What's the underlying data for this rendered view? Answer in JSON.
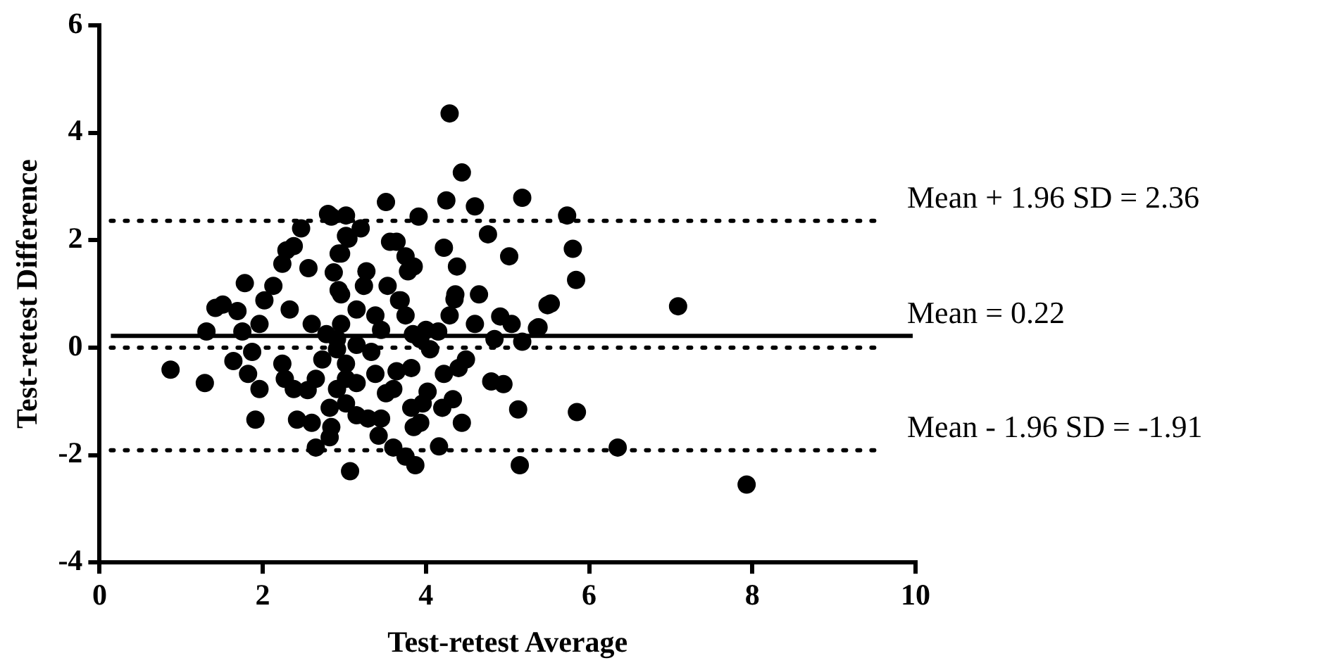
{
  "chart_data": {
    "type": "scatter",
    "xlabel": "Test-retest Average",
    "ylabel": "Test-retest Difference",
    "xlim": [
      0,
      10
    ],
    "xticks": [
      0,
      2,
      4,
      6,
      8,
      10
    ],
    "ylim": [
      -4,
      6
    ],
    "yticks": [
      -4,
      -2,
      0,
      2,
      4,
      6
    ],
    "grid": false,
    "legend": false,
    "marker": "circle",
    "series": [
      {
        "color": "#000000",
        "x": [
          0.87,
          1.29,
          1.91,
          1.78,
          3.07,
          2.8,
          3.02,
          2.47,
          1.31,
          1.51,
          2.65,
          4.29,
          4.44,
          5.18,
          3.51,
          4.25,
          4.6,
          3.91,
          4.76,
          4.22,
          5.02,
          4.38,
          4.65,
          4.35,
          5.49,
          4.91,
          5.05,
          5.38,
          4.84,
          5.18,
          4.49,
          4.4,
          4.22,
          4.8,
          4.95,
          5.13,
          4.02,
          4.33,
          4.2,
          4.44,
          4.16,
          3.87,
          3.75,
          5.15,
          3.6,
          3.42,
          3.85,
          3.56,
          3.75,
          3.85,
          3.53,
          3.67,
          3.93,
          4.05,
          3.82,
          3.6,
          3.29,
          3.15,
          5.73,
          5.8,
          5.84,
          5.53,
          7.09,
          5.36,
          5.85,
          6.35,
          7.93,
          1.42,
          1.69,
          1.75,
          1.96,
          2.02,
          2.13,
          2.24,
          2.29,
          2.38,
          2.56,
          2.33,
          2.6,
          1.87,
          1.64,
          1.82,
          1.96,
          2.24,
          2.27,
          2.38,
          2.55,
          2.42,
          2.6,
          2.82,
          2.84,
          2.82,
          2.93,
          2.96,
          2.91,
          3.02,
          2.78,
          2.73,
          2.65,
          3.02,
          2.93,
          2.87,
          2.84,
          3.2,
          3.05,
          2.96,
          3.64,
          3.27,
          3.24,
          2.96,
          3.15,
          3.38,
          3.69,
          3.75,
          3.45,
          3.84,
          4.0,
          4.15,
          4.29,
          4.6,
          2.91,
          3.15,
          3.33,
          3.02,
          3.38,
          3.64,
          2.91,
          3.15,
          3.51,
          3.02,
          3.45,
          3.82,
          3.96,
          3.93,
          3.78,
          4.36
        ],
        "values": [
          -0.41,
          -0.66,
          -1.34,
          1.2,
          -2.3,
          2.49,
          2.46,
          2.22,
          0.3,
          0.8,
          -1.86,
          4.36,
          3.26,
          2.79,
          2.71,
          2.74,
          2.63,
          2.44,
          2.11,
          1.86,
          1.7,
          1.51,
          0.99,
          0.9,
          0.79,
          0.58,
          0.44,
          0.38,
          0.16,
          0.11,
          -0.22,
          -0.38,
          -0.49,
          -0.63,
          -0.68,
          -1.15,
          -0.82,
          -0.96,
          -1.12,
          -1.4,
          -1.84,
          -2.19,
          -2.03,
          -2.19,
          -1.86,
          -1.64,
          -1.48,
          1.97,
          1.7,
          1.51,
          1.15,
          0.88,
          0.16,
          -0.03,
          -0.38,
          -0.77,
          -1.32,
          -1.26,
          2.46,
          1.84,
          1.26,
          0.82,
          0.77,
          0.36,
          -1.2,
          -1.86,
          -2.55,
          0.74,
          0.68,
          0.3,
          0.44,
          0.88,
          1.15,
          1.56,
          1.81,
          1.89,
          1.48,
          0.71,
          0.44,
          -0.08,
          -0.25,
          -0.49,
          -0.77,
          -0.3,
          -0.58,
          -0.77,
          -0.79,
          -1.34,
          -1.4,
          -1.12,
          -1.48,
          -1.67,
          1.07,
          0.44,
          -0.03,
          -0.58,
          0.25,
          -0.22,
          -0.58,
          2.08,
          1.75,
          1.4,
          2.44,
          2.22,
          2.03,
          1.75,
          1.97,
          1.42,
          1.15,
          0.99,
          0.71,
          0.6,
          0.88,
          0.6,
          0.33,
          0.25,
          0.33,
          0.3,
          0.6,
          0.44,
          0.16,
          0.05,
          -0.08,
          -0.3,
          -0.49,
          -0.44,
          -0.77,
          -0.66,
          -0.85,
          -1.04,
          -1.32,
          -1.12,
          -1.04,
          -1.4,
          1.42,
          0.99
        ]
      }
    ],
    "ref_lines": [
      {
        "axis": "y",
        "value": 2.36,
        "label": "Mean + 1.96 SD = 2.36",
        "line_style": "dotted"
      },
      {
        "axis": "y",
        "value": 0.22,
        "label": "Mean = 0.22",
        "line_style": "solid"
      },
      {
        "axis": "y",
        "value": 0,
        "line_style": "dotted"
      },
      {
        "axis": "y",
        "value": -1.91,
        "label": "Mean - 1.96 SD = -1.91",
        "line_style": "dotted"
      }
    ]
  }
}
